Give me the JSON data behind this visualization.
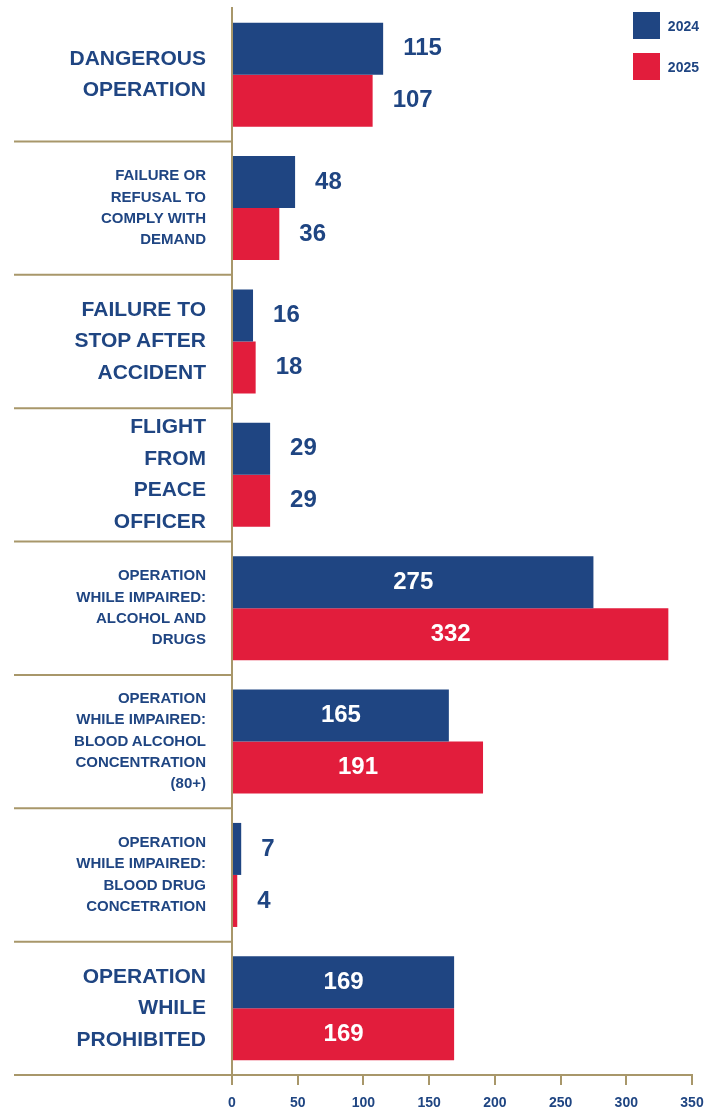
{
  "chart_data": {
    "type": "bar",
    "orientation": "horizontal",
    "categories": [
      "DANGEROUS OPERATION",
      "FAILURE OR REFUSAL TO COMPLY WITH DEMAND",
      "FAILURE TO STOP AFTER ACCIDENT",
      "FLIGHT FROM PEACE OFFICER",
      "OPERATION WHILE IMPAIRED: ALCOHOL AND DRUGS",
      "OPERATION WHILE IMPAIRED: BLOOD ALCOHOL CONCENTRATION (80+)",
      "OPERATION WHILE IMPAIRED: BLOOD DRUG CONCETRATION",
      "OPERATION WHILE PROHIBITED"
    ],
    "series": [
      {
        "name": "2024",
        "color": "#1f4582",
        "values": [
          115,
          48,
          16,
          29,
          275,
          165,
          7,
          169
        ]
      },
      {
        "name": "2025",
        "color": "#e21d3c",
        "values": [
          107,
          36,
          18,
          29,
          332,
          191,
          4,
          169
        ]
      }
    ],
    "xlim": [
      0,
      350
    ],
    "xticks": [
      0,
      50,
      100,
      150,
      200,
      250,
      300,
      350
    ],
    "data_labels": true,
    "legend": "top right",
    "grid": false
  }
}
